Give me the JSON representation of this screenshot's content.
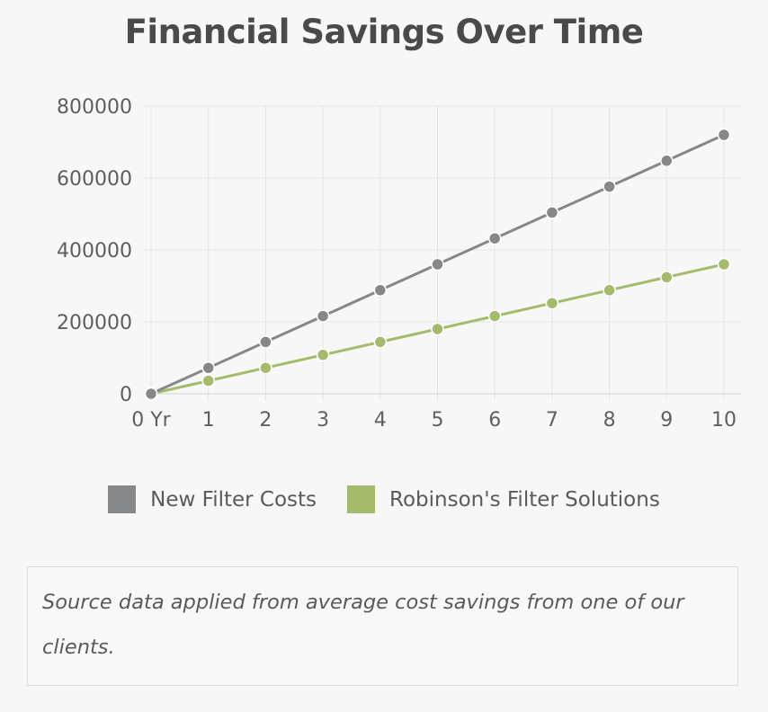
{
  "chart_data": {
    "type": "line",
    "title": "Financial Savings Over Time",
    "categories": [
      "0 Yr",
      "1",
      "2",
      "3",
      "4",
      "5",
      "6",
      "7",
      "8",
      "9",
      "10"
    ],
    "y_ticks": [
      "0",
      "200000",
      "400000",
      "600000",
      "800000"
    ],
    "ylim": [
      0,
      800000
    ],
    "grid": true,
    "legend_position": "bottom",
    "series": [
      {
        "name": "New Filter Costs",
        "color": "#868788",
        "values": [
          0,
          72000,
          144000,
          216000,
          288000,
          360000,
          432000,
          504000,
          576000,
          648000,
          720000
        ]
      },
      {
        "name": "Robinson's Filter Solutions",
        "color": "#a6ba6b",
        "values": [
          0,
          36000,
          72000,
          108000,
          144000,
          180000,
          216000,
          252000,
          288000,
          324000,
          360000
        ]
      }
    ]
  },
  "note": {
    "text": "Source data applied from average cost savings from one of our clients."
  }
}
